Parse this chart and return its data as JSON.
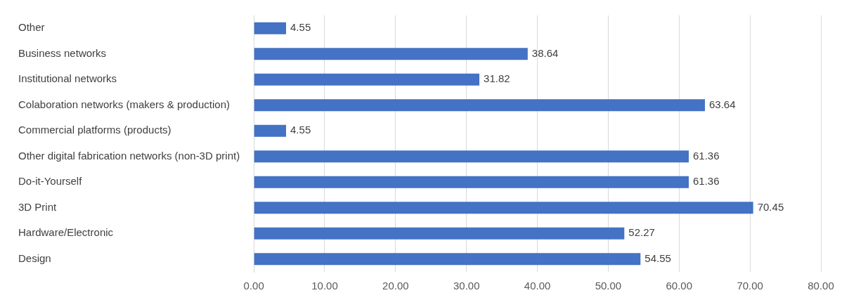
{
  "chart_data": {
    "type": "bar",
    "orientation": "horizontal",
    "categories": [
      "Other",
      "Business networks",
      "Institutional networks",
      "Colaboration networks (makers & production)",
      "Commercial platforms (products)",
      "Other digital fabrication networks (non-3D print)",
      "Do-it-Yourself",
      "3D Print",
      "Hardware/Electronic",
      "Design"
    ],
    "values": [
      4.55,
      38.64,
      31.82,
      63.64,
      4.55,
      61.36,
      61.36,
      70.45,
      52.27,
      54.55
    ],
    "color": "#4472c4",
    "xlim": [
      0,
      80
    ],
    "xticks": [
      {
        "value": 0,
        "label": "0.00"
      },
      {
        "value": 10,
        "label": "10.00"
      },
      {
        "value": 20,
        "label": "20.00"
      },
      {
        "value": 30,
        "label": "30.00"
      },
      {
        "value": 40,
        "label": "40.00"
      },
      {
        "value": 50,
        "label": "50.00"
      },
      {
        "value": 60,
        "label": "60.00"
      },
      {
        "value": 70,
        "label": "70.00"
      },
      {
        "value": 80,
        "label": "80.00"
      }
    ],
    "grid": "x",
    "data_labels": true,
    "legend": false
  }
}
